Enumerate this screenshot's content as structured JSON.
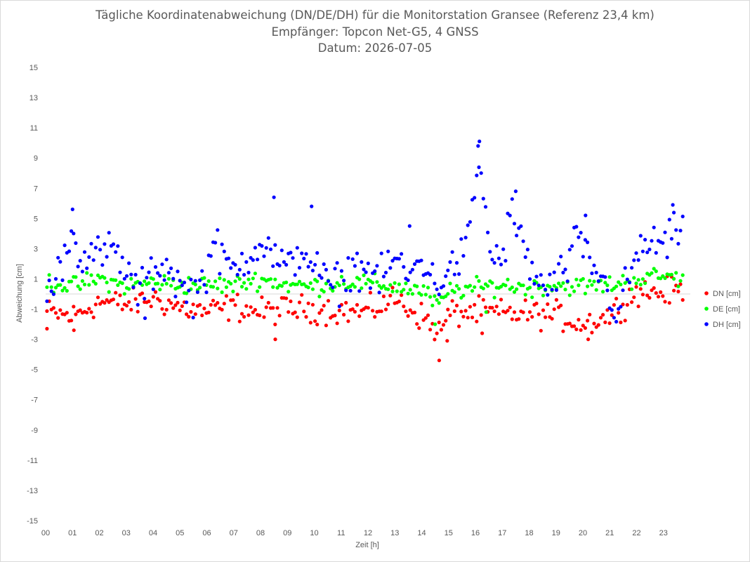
{
  "chart_data": {
    "type": "scatter",
    "title": "Tägliche Koordinatenabweichung (DN/DE/DH) für die Monitorstation Gransee (Referenz 23,4 km)",
    "subtitle1": "Empfänger: Topcon Net-G5, 4 GNSS",
    "subtitle2": "Datum: 2026-07-05",
    "xlabel": "Zeit [h]",
    "ylabel": "Abweichung [cm]",
    "xlim": [
      0,
      24
    ],
    "ylim": [
      -15,
      15
    ],
    "x_ticks": [
      "00",
      "01",
      "02",
      "03",
      "04",
      "05",
      "06",
      "07",
      "08",
      "09",
      "10",
      "11",
      "12",
      "13",
      "14",
      "15",
      "16",
      "17",
      "18",
      "19",
      "20",
      "21",
      "22",
      "23"
    ],
    "y_ticks": [
      15,
      13,
      11,
      9,
      7,
      5,
      3,
      1,
      -1,
      -3,
      -5,
      -7,
      -9,
      -11,
      -13,
      -15
    ],
    "grid": "zero-line only",
    "legend_position": "right",
    "series": [
      {
        "name": "DN [cm]",
        "color": "#ff0000",
        "profile": [
          [
            0.0,
            -1.2
          ],
          [
            1.0,
            -1.5
          ],
          [
            2.0,
            -0.5
          ],
          [
            3.0,
            -0.7
          ],
          [
            4.0,
            -0.3
          ],
          [
            5.0,
            -0.9
          ],
          [
            6.0,
            -1.2
          ],
          [
            7.0,
            -0.8
          ],
          [
            8.0,
            -1.2
          ],
          [
            9.0,
            -1.0
          ],
          [
            10.0,
            -1.0
          ],
          [
            11.0,
            -1.1
          ],
          [
            12.0,
            -1.2
          ],
          [
            13.0,
            -0.3
          ],
          [
            14.0,
            -1.5
          ],
          [
            14.7,
            -2.6
          ],
          [
            15.0,
            -1.3
          ],
          [
            16.0,
            -1.2
          ],
          [
            17.0,
            -1.3
          ],
          [
            18.0,
            -1.3
          ],
          [
            19.0,
            -1.4
          ],
          [
            20.0,
            -2.0
          ],
          [
            21.0,
            -1.4
          ],
          [
            22.0,
            0.2
          ],
          [
            23.0,
            0.1
          ],
          [
            23.8,
            0.3
          ]
        ],
        "outliers": [
          [
            0.05,
            -2.3
          ],
          [
            1.05,
            -2.4
          ],
          [
            8.55,
            -3.0
          ],
          [
            14.65,
            -4.4
          ],
          [
            14.95,
            -3.1
          ],
          [
            20.2,
            -3.0
          ],
          [
            16.25,
            -2.6
          ]
        ]
      },
      {
        "name": "DE [cm]",
        "color": "#00ff00",
        "profile": [
          [
            0.0,
            0.8
          ],
          [
            1.0,
            0.5
          ],
          [
            2.0,
            1.0
          ],
          [
            3.0,
            0.5
          ],
          [
            4.0,
            0.8
          ],
          [
            5.0,
            0.6
          ],
          [
            6.0,
            0.6
          ],
          [
            7.0,
            0.6
          ],
          [
            8.0,
            1.0
          ],
          [
            9.0,
            0.6
          ],
          [
            10.0,
            0.5
          ],
          [
            11.0,
            0.8
          ],
          [
            12.0,
            0.7
          ],
          [
            13.0,
            0.5
          ],
          [
            14.0,
            0.2
          ],
          [
            14.7,
            -0.8
          ],
          [
            15.0,
            0.2
          ],
          [
            16.0,
            0.4
          ],
          [
            17.0,
            0.6
          ],
          [
            18.0,
            0.4
          ],
          [
            19.0,
            0.6
          ],
          [
            20.0,
            0.5
          ],
          [
            21.0,
            0.6
          ],
          [
            22.0,
            1.0
          ],
          [
            23.0,
            1.2
          ],
          [
            23.8,
            1.0
          ]
        ],
        "outliers": [
          [
            14.5,
            -2.0
          ],
          [
            16.4,
            -1.2
          ]
        ]
      },
      {
        "name": "DH [cm]",
        "color": "#0000ff",
        "profile": [
          [
            0.0,
            -0.5
          ],
          [
            0.5,
            1.5
          ],
          [
            0.9,
            4.0
          ],
          [
            1.3,
            2.7
          ],
          [
            2.0,
            2.5
          ],
          [
            2.5,
            3.0
          ],
          [
            3.0,
            1.5
          ],
          [
            3.5,
            0.0
          ],
          [
            4.0,
            1.5
          ],
          [
            4.5,
            2.0
          ],
          [
            5.0,
            0.5
          ],
          [
            5.5,
            0.0
          ],
          [
            6.0,
            1.5
          ],
          [
            6.2,
            3.5
          ],
          [
            6.5,
            2.5
          ],
          [
            7.0,
            1.5
          ],
          [
            7.5,
            2.5
          ],
          [
            8.0,
            3.5
          ],
          [
            8.5,
            2.5
          ],
          [
            9.0,
            1.5
          ],
          [
            9.5,
            3.0
          ],
          [
            10.0,
            2.0
          ],
          [
            10.5,
            0.5
          ],
          [
            11.0,
            0.8
          ],
          [
            11.5,
            2.0
          ],
          [
            12.0,
            1.5
          ],
          [
            12.5,
            1.0
          ],
          [
            13.0,
            2.5
          ],
          [
            13.5,
            1.0
          ],
          [
            14.0,
            2.5
          ],
          [
            14.5,
            0.5
          ],
          [
            15.0,
            1.5
          ],
          [
            15.5,
            2.5
          ],
          [
            15.8,
            4.0
          ],
          [
            16.0,
            7.5
          ],
          [
            16.2,
            8.5
          ],
          [
            16.5,
            3.0
          ],
          [
            17.0,
            2.0
          ],
          [
            17.3,
            5.5
          ],
          [
            17.7,
            3.5
          ],
          [
            18.0,
            2.0
          ],
          [
            18.5,
            0.2
          ],
          [
            19.0,
            0.8
          ],
          [
            19.5,
            2.0
          ],
          [
            19.8,
            3.8
          ],
          [
            20.0,
            3.0
          ],
          [
            20.5,
            1.5
          ],
          [
            21.0,
            0.0
          ],
          [
            21.3,
            -1.5
          ],
          [
            21.6,
            0.5
          ],
          [
            22.0,
            2.5
          ],
          [
            22.5,
            3.5
          ],
          [
            23.0,
            3.0
          ],
          [
            23.5,
            4.2
          ],
          [
            23.8,
            3.5
          ]
        ],
        "outliers": [
          [
            1.0,
            5.6
          ],
          [
            8.5,
            6.4
          ],
          [
            9.9,
            5.8
          ],
          [
            16.1,
            9.8
          ],
          [
            16.15,
            10.1
          ],
          [
            17.5,
            6.8
          ],
          [
            23.35,
            5.9
          ],
          [
            20.1,
            5.2
          ],
          [
            13.55,
            4.5
          ],
          [
            3.7,
            -1.6
          ]
        ]
      }
    ]
  }
}
